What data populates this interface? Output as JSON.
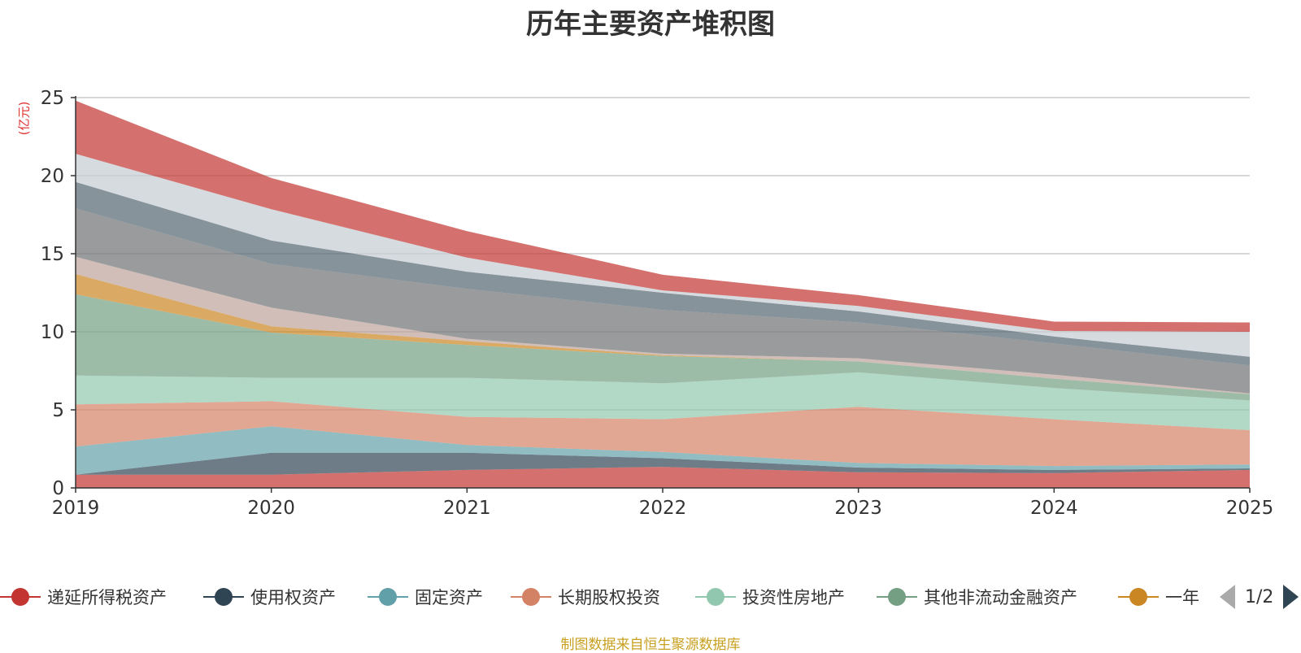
{
  "title": "历年主要资产堆积图",
  "y_unit": "(亿元)",
  "footer": "制图数据来自恒生聚源数据库",
  "pager": {
    "text": "1/2"
  },
  "chart_data": {
    "type": "area",
    "stacked": true,
    "x": [
      "2019",
      "2020",
      "2021",
      "2022",
      "2023",
      "2024",
      "2025"
    ],
    "ylim": [
      0,
      25
    ],
    "yticks": [
      0,
      5,
      10,
      15,
      20,
      25
    ],
    "grid": true,
    "legend_position": "bottom",
    "series": [
      {
        "name": "递延所得税资产",
        "color": "#c23531",
        "values": [
          0.85,
          0.85,
          1.15,
          1.35,
          1.0,
          0.95,
          1.15
        ]
      },
      {
        "name": "使用权资产",
        "color": "#2f4554",
        "values": [
          0.0,
          1.4,
          1.1,
          0.55,
          0.3,
          0.2,
          0.1
        ]
      },
      {
        "name": "固定资产",
        "color": "#61a0a8",
        "values": [
          1.8,
          1.7,
          0.5,
          0.4,
          0.3,
          0.25,
          0.25
        ]
      },
      {
        "name": "长期股权投资",
        "color": "#d48265",
        "values": [
          2.7,
          1.6,
          1.8,
          2.1,
          3.6,
          3.0,
          2.2
        ]
      },
      {
        "name": "投资性房地产",
        "color": "#91c7ae",
        "values": [
          1.85,
          1.5,
          2.5,
          2.3,
          2.2,
          2.0,
          1.9
        ]
      },
      {
        "name": "其他非流动金融资产",
        "color": "#749f83",
        "values": [
          5.2,
          2.9,
          2.1,
          1.75,
          0.7,
          0.6,
          0.4
        ]
      },
      {
        "name": "一年",
        "color": "#ca8622",
        "values": [
          1.3,
          0.4,
          0.25,
          0.05,
          0.0,
          0.0,
          0.0
        ]
      },
      {
        "color": "#bda29a",
        "values": [
          1.1,
          1.2,
          0.15,
          0.1,
          0.2,
          0.25,
          0.05
        ]
      },
      {
        "color": "#6e7074",
        "values": [
          3.1,
          2.8,
          3.2,
          2.8,
          2.3,
          2.0,
          1.8
        ]
      },
      {
        "color": "#546570",
        "values": [
          1.7,
          1.5,
          1.1,
          1.1,
          0.7,
          0.45,
          0.55
        ]
      },
      {
        "color": "#c4ccd3",
        "values": [
          1.8,
          2.0,
          0.9,
          0.15,
          0.35,
          0.35,
          1.6
        ]
      },
      {
        "color": "#c23531",
        "values": [
          3.4,
          2.0,
          1.7,
          1.0,
          0.7,
          0.6,
          0.6
        ]
      }
    ]
  }
}
